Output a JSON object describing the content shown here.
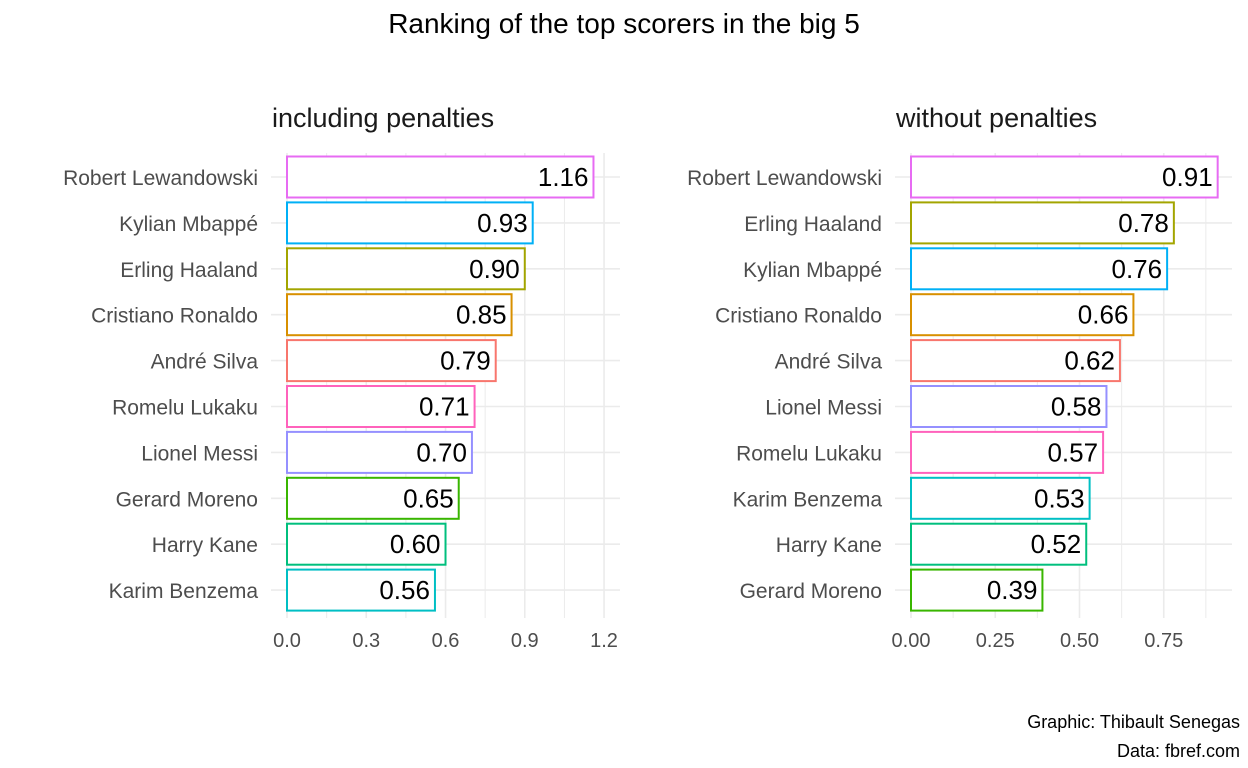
{
  "title": "Ranking of the top scorers in the big 5",
  "caption": {
    "line1": "Graphic: Thibault Senegas",
    "line2": "Data: fbref.com"
  },
  "chart_data": [
    {
      "type": "bar",
      "orientation": "horizontal",
      "title": "including penalties",
      "xlabel": "",
      "ylabel": "",
      "xlim": [
        0,
        1.2
      ],
      "xticks": [
        0.0,
        0.3,
        0.6,
        0.9,
        1.2
      ],
      "xtick_labels": [
        "0.0",
        "0.3",
        "0.6",
        "0.9",
        "1.2"
      ],
      "grid": true,
      "categories": [
        "Robert Lewandowski",
        "Kylian Mbappé",
        "Erling Haaland",
        "Cristiano Ronaldo",
        "André Silva",
        "Romelu Lukaku",
        "Lionel Messi",
        "Gerard Moreno",
        "Harry Kane",
        "Karim Benzema"
      ],
      "values": [
        1.16,
        0.93,
        0.9,
        0.85,
        0.79,
        0.71,
        0.7,
        0.65,
        0.6,
        0.56
      ],
      "labels": [
        "1.16",
        "0.93",
        "0.90",
        "0.85",
        "0.79",
        "0.71",
        "0.70",
        "0.65",
        "0.60",
        "0.56"
      ],
      "colors": [
        "#E76BF3",
        "#00B0F6",
        "#A3A500",
        "#D89000",
        "#F8766D",
        "#FF62BC",
        "#9590FF",
        "#39B600",
        "#00BF7D",
        "#00BFC4"
      ]
    },
    {
      "type": "bar",
      "orientation": "horizontal",
      "title": "without penalties",
      "xlabel": "",
      "ylabel": "",
      "xlim": [
        0,
        0.9
      ],
      "xticks": [
        0.0,
        0.25,
        0.5,
        0.75
      ],
      "xtick_labels": [
        "0.00",
        "0.25",
        "0.50",
        "0.75"
      ],
      "grid": true,
      "categories": [
        "Robert Lewandowski",
        "Erling Haaland",
        "Kylian Mbappé",
        "Cristiano Ronaldo",
        "André Silva",
        "Lionel Messi",
        "Romelu Lukaku",
        "Karim Benzema",
        "Harry Kane",
        "Gerard Moreno"
      ],
      "values": [
        0.91,
        0.78,
        0.76,
        0.66,
        0.62,
        0.58,
        0.57,
        0.53,
        0.52,
        0.39
      ],
      "labels": [
        "0.91",
        "0.78",
        "0.76",
        "0.66",
        "0.62",
        "0.58",
        "0.57",
        "0.53",
        "0.52",
        "0.39"
      ],
      "colors": [
        "#E76BF3",
        "#A3A500",
        "#00B0F6",
        "#D89000",
        "#F8766D",
        "#9590FF",
        "#FF62BC",
        "#00BFC4",
        "#00BF7D",
        "#39B600"
      ]
    }
  ]
}
